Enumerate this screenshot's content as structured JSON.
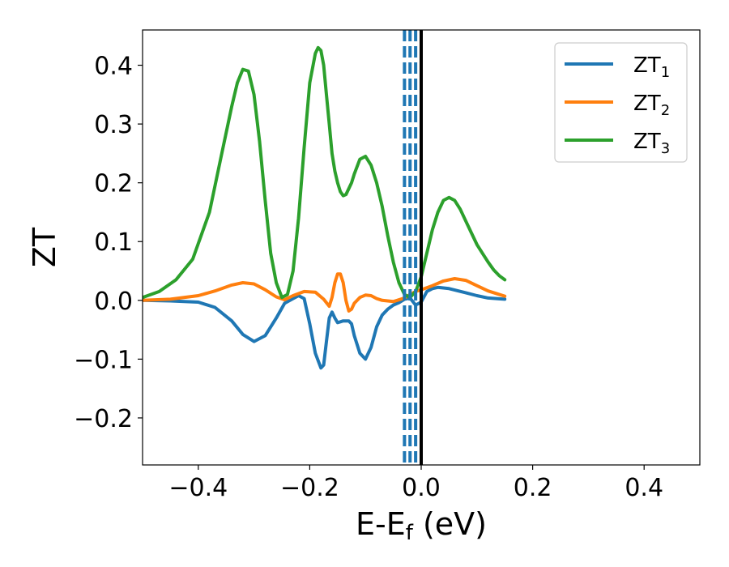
{
  "chart_data": {
    "type": "line",
    "xlabel": "E-E",
    "xlabel_sub": "f",
    "xlabel_unit": " (eV)",
    "ylabel": "ZT",
    "xlim": [
      -0.5,
      0.5
    ],
    "ylim": [
      -0.28,
      0.46
    ],
    "xticks": [
      -0.4,
      -0.2,
      0.0,
      0.2,
      0.4
    ],
    "xtick_labels": [
      "−0.4",
      "−0.2",
      "0.0",
      "0.2",
      "0.4"
    ],
    "yticks": [
      -0.2,
      -0.1,
      0.0,
      0.1,
      0.2,
      0.3,
      0.4
    ],
    "ytick_labels": [
      "−0.2",
      "−0.1",
      "0.0",
      "0.1",
      "0.2",
      "0.3",
      "0.4"
    ],
    "grid": false,
    "legend_position": "top-right",
    "series": [
      {
        "name": "ZT",
        "name_sub": "1",
        "color": "#1f77b4",
        "x": [
          -0.5,
          -0.45,
          -0.4,
          -0.37,
          -0.34,
          -0.32,
          -0.3,
          -0.28,
          -0.26,
          -0.245,
          -0.23,
          -0.22,
          -0.21,
          -0.2,
          -0.19,
          -0.18,
          -0.175,
          -0.17,
          -0.165,
          -0.16,
          -0.155,
          -0.15,
          -0.14,
          -0.13,
          -0.125,
          -0.12,
          -0.11,
          -0.1,
          -0.09,
          -0.08,
          -0.07,
          -0.06,
          -0.05,
          -0.04,
          -0.03,
          -0.02,
          -0.01,
          0.0,
          0.01,
          0.02,
          0.03,
          0.05,
          0.08,
          0.1,
          0.12,
          0.15
        ],
        "y": [
          0.0,
          -0.001,
          -0.003,
          -0.012,
          -0.035,
          -0.058,
          -0.07,
          -0.06,
          -0.03,
          -0.005,
          0.003,
          0.008,
          0.003,
          -0.04,
          -0.09,
          -0.115,
          -0.11,
          -0.07,
          -0.03,
          -0.02,
          -0.03,
          -0.038,
          -0.035,
          -0.035,
          -0.04,
          -0.06,
          -0.09,
          -0.1,
          -0.08,
          -0.045,
          -0.025,
          -0.015,
          -0.008,
          -0.004,
          0.002,
          0.004,
          -0.008,
          -0.003,
          0.015,
          0.02,
          0.022,
          0.02,
          0.013,
          0.008,
          0.004,
          0.002
        ]
      },
      {
        "name": "ZT",
        "name_sub": "2",
        "color": "#ff7f0e",
        "x": [
          -0.5,
          -0.45,
          -0.4,
          -0.37,
          -0.34,
          -0.32,
          -0.3,
          -0.28,
          -0.26,
          -0.245,
          -0.23,
          -0.21,
          -0.19,
          -0.175,
          -0.165,
          -0.16,
          -0.155,
          -0.15,
          -0.145,
          -0.14,
          -0.135,
          -0.13,
          -0.125,
          -0.12,
          -0.11,
          -0.1,
          -0.09,
          -0.08,
          -0.07,
          -0.05,
          -0.03,
          -0.02,
          -0.01,
          0.0,
          0.02,
          0.04,
          0.06,
          0.08,
          0.1,
          0.12,
          0.15
        ],
        "y": [
          0.0,
          0.002,
          0.008,
          0.016,
          0.026,
          0.03,
          0.028,
          0.018,
          0.006,
          0.001,
          0.008,
          0.015,
          0.014,
          0.002,
          -0.01,
          0.005,
          0.03,
          0.045,
          0.045,
          0.03,
          0.0,
          -0.018,
          -0.015,
          -0.005,
          0.005,
          0.009,
          0.008,
          0.003,
          0.0,
          -0.002,
          0.004,
          0.01,
          0.015,
          0.018,
          0.025,
          0.033,
          0.037,
          0.034,
          0.025,
          0.016,
          0.007
        ]
      },
      {
        "name": "ZT",
        "name_sub": "3",
        "color": "#2ca02c",
        "x": [
          -0.5,
          -0.47,
          -0.44,
          -0.41,
          -0.38,
          -0.36,
          -0.34,
          -0.33,
          -0.32,
          -0.31,
          -0.3,
          -0.29,
          -0.28,
          -0.27,
          -0.26,
          -0.25,
          -0.24,
          -0.23,
          -0.22,
          -0.21,
          -0.2,
          -0.19,
          -0.185,
          -0.18,
          -0.175,
          -0.17,
          -0.165,
          -0.16,
          -0.155,
          -0.15,
          -0.145,
          -0.14,
          -0.135,
          -0.13,
          -0.125,
          -0.12,
          -0.11,
          -0.1,
          -0.09,
          -0.08,
          -0.07,
          -0.06,
          -0.05,
          -0.04,
          -0.03,
          -0.02,
          -0.01,
          0.0,
          0.01,
          0.02,
          0.03,
          0.04,
          0.05,
          0.06,
          0.07,
          0.08,
          0.09,
          0.1,
          0.11,
          0.12,
          0.13,
          0.14,
          0.15
        ],
        "y": [
          0.005,
          0.015,
          0.035,
          0.07,
          0.15,
          0.24,
          0.33,
          0.37,
          0.393,
          0.39,
          0.35,
          0.27,
          0.17,
          0.08,
          0.03,
          0.005,
          0.01,
          0.05,
          0.14,
          0.26,
          0.37,
          0.42,
          0.43,
          0.425,
          0.4,
          0.35,
          0.3,
          0.25,
          0.22,
          0.2,
          0.185,
          0.178,
          0.18,
          0.19,
          0.2,
          0.215,
          0.24,
          0.245,
          0.23,
          0.2,
          0.16,
          0.11,
          0.065,
          0.03,
          0.01,
          0.005,
          0.015,
          0.04,
          0.08,
          0.12,
          0.15,
          0.17,
          0.175,
          0.17,
          0.155,
          0.135,
          0.115,
          0.095,
          0.08,
          0.065,
          0.052,
          0.042,
          0.035
        ]
      }
    ],
    "vlines": [
      {
        "x": 0.0,
        "color": "#000000",
        "style": "solid"
      },
      {
        "x": -0.01,
        "color": "#1f77b4",
        "style": "dashed"
      },
      {
        "x": -0.02,
        "color": "#1f77b4",
        "style": "dashed"
      },
      {
        "x": -0.03,
        "color": "#1f77b4",
        "style": "dashed"
      }
    ]
  }
}
